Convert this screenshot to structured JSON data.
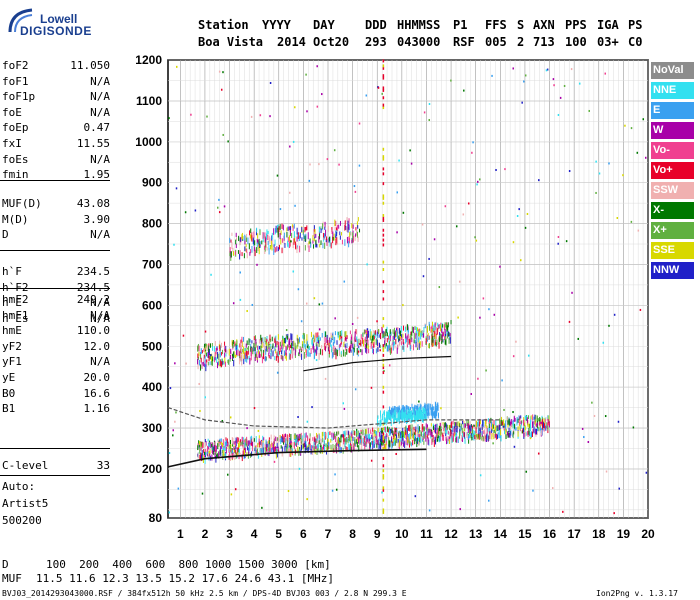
{
  "logo": {
    "top": "Lowell",
    "bottom": "DIGISONDE"
  },
  "header": {
    "labels": [
      "Station",
      "YYYY",
      "DAY",
      "DDD",
      "HHMMSS",
      "P1",
      "FFS",
      "S",
      "AXN",
      "PPS",
      "IGA",
      "PS"
    ],
    "values": [
      "Boa Vista",
      "2014",
      "Oct20",
      "293",
      "043000",
      "RSF",
      "005",
      "2",
      "713",
      "100",
      "03+",
      "C0"
    ]
  },
  "params_1": [
    {
      "k": "foF2",
      "v": "11.050"
    },
    {
      "k": "foF1",
      "v": "N/A"
    },
    {
      "k": "foF1p",
      "v": "N/A"
    },
    {
      "k": "foE",
      "v": "N/A"
    },
    {
      "k": "foEp",
      "v": "0.47"
    },
    {
      "k": "fxI",
      "v": "11.55"
    },
    {
      "k": "foEs",
      "v": "N/A"
    },
    {
      "k": "fmin",
      "v": "1.95"
    }
  ],
  "params_2": [
    {
      "k": "MUF(D)",
      "v": "43.08"
    },
    {
      "k": "M(D)",
      "v": "3.90"
    },
    {
      "k": "D",
      "v": "N/A"
    }
  ],
  "params_3": [
    {
      "k": "h`F",
      "v": "234.5"
    },
    {
      "k": "h`F2",
      "v": "234.5"
    },
    {
      "k": "h`E",
      "v": "N/A"
    },
    {
      "k": "h`Es",
      "v": "N/A"
    }
  ],
  "params_4": [
    {
      "k": "hmF2",
      "v": "249.2"
    },
    {
      "k": "hmF1",
      "v": "N/A"
    },
    {
      "k": "hmE",
      "v": "110.0"
    },
    {
      "k": "yF2",
      "v": "12.0"
    },
    {
      "k": "yF1",
      "v": "N/A"
    },
    {
      "k": "yE",
      "v": "20.0"
    },
    {
      "k": "B0",
      "v": "16.6"
    },
    {
      "k": "B1",
      "v": "1.16"
    }
  ],
  "params_5": [
    {
      "k": "C-level",
      "v": "33"
    }
  ],
  "auto": {
    "line1": "Auto:",
    "line2": "Artist5",
    "line3": "500200"
  },
  "legend": [
    {
      "label": "NoVal",
      "color": "#8c8c8c"
    },
    {
      "label": "NNE",
      "color": "#33e0f0"
    },
    {
      "label": "E",
      "color": "#3aa0f0"
    },
    {
      "label": "W",
      "color": "#a800a8"
    },
    {
      "label": "Vo-",
      "color": "#f04090"
    },
    {
      "label": "Vo+",
      "color": "#e8002a"
    },
    {
      "label": "SSW",
      "color": "#f0b0b0"
    },
    {
      "label": "X-",
      "color": "#007800"
    },
    {
      "label": "X+",
      "color": "#60b040"
    },
    {
      "label": "SSE",
      "color": "#d8d800"
    },
    {
      "label": "NNW",
      "color": "#2020c8"
    }
  ],
  "footer": {
    "d_label": "D",
    "d_values": "100  200  400  600  800 1000 1500 3000 [km]",
    "muf_label": "MUF",
    "muf_values": "11.5 11.6 12.3 13.5 15.2 17.6 24.6 43.1 [MHz]",
    "file_line": "BVJ03_2014293043000.RSF / 384fx512h 50 kHz 2.5 km / DPS-4D BVJ03 003 / 2.8 N 299.3 E",
    "version": "Ion2Png v. 1.3.17"
  },
  "chart_data": {
    "type": "scatter",
    "xlim": [
      0.5,
      20
    ],
    "ylim": [
      80,
      1200
    ],
    "x_ticks": [
      1,
      2,
      3,
      4,
      5,
      6,
      7,
      8,
      9,
      10,
      11,
      12,
      13,
      14,
      15,
      16,
      17,
      18,
      19,
      20
    ],
    "y_ticks": [
      80,
      200,
      300,
      400,
      500,
      600,
      700,
      800,
      900,
      1000,
      1100,
      1200
    ],
    "grid": true,
    "legend_position": "right",
    "series": [
      {
        "name": "Vo-",
        "trace": [
          [
            1.7,
            250
          ],
          [
            4,
            260
          ],
          [
            7,
            270
          ],
          [
            10,
            285
          ],
          [
            13,
            300
          ],
          [
            16,
            315
          ]
        ]
      },
      {
        "name": "Vo+",
        "trace": [
          [
            1.7,
            480
          ],
          [
            4,
            500
          ],
          [
            7,
            510
          ],
          [
            10,
            525
          ],
          [
            12,
            540
          ]
        ]
      },
      {
        "name": "E",
        "trace": [
          [
            9.5,
            340
          ],
          [
            10.5,
            345
          ],
          [
            11.5,
            350
          ]
        ]
      },
      {
        "name": "NNE",
        "trace": [
          [
            9,
            330
          ],
          [
            10,
            335
          ],
          [
            11,
            340
          ]
        ]
      },
      {
        "name": "W",
        "trace": [
          [
            3,
            750
          ],
          [
            5,
            770
          ],
          [
            7,
            780
          ],
          [
            8.3,
            790
          ]
        ]
      }
    ],
    "profile_curves": [
      {
        "trace": [
          [
            0.5,
            205
          ],
          [
            2,
            225
          ],
          [
            5,
            240
          ],
          [
            8,
            245
          ],
          [
            11,
            248
          ]
        ]
      },
      {
        "trace": [
          [
            0.5,
            350
          ],
          [
            2,
            320
          ],
          [
            4,
            305
          ],
          [
            7,
            300
          ],
          [
            11,
            320
          ],
          [
            14,
            320
          ]
        ]
      },
      {
        "trace": [
          [
            6,
            440
          ],
          [
            8,
            460
          ],
          [
            10,
            470
          ],
          [
            12,
            475
          ]
        ]
      }
    ],
    "vertical_line_x": 9.25
  }
}
